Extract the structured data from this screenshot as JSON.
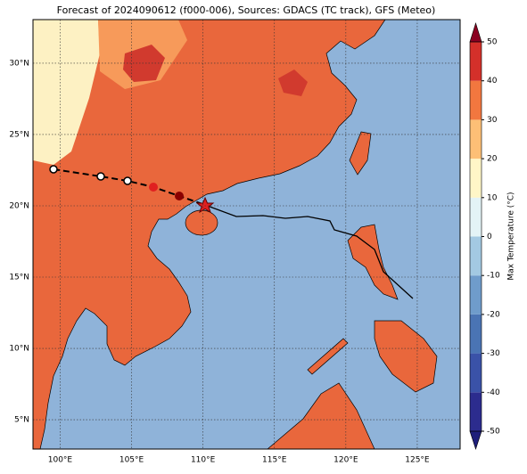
{
  "map": {
    "title": "Forecast of 2024090612 (f000-006), Sources: GDACS (TC track), GFS (Meteo)",
    "xlim": [
      98.1,
      128.0
    ],
    "ylim": [
      2.94,
      33.06
    ],
    "xticks": [
      {
        "value": 100,
        "label": "100°E"
      },
      {
        "value": 105,
        "label": "105°E"
      },
      {
        "value": 110,
        "label": "110°E"
      },
      {
        "value": 115,
        "label": "115°E"
      },
      {
        "value": 120,
        "label": "120°E"
      },
      {
        "value": 125,
        "label": "125°E"
      }
    ],
    "yticks": [
      {
        "value": 5,
        "label": "5°N"
      },
      {
        "value": 10,
        "label": "10°N"
      },
      {
        "value": 15,
        "label": "15°N"
      },
      {
        "value": 20,
        "label": "20°N"
      },
      {
        "value": 25,
        "label": "25°N"
      },
      {
        "value": 30,
        "label": "30°N"
      }
    ],
    "grid": true,
    "colorbar": {
      "label": "Max Temperature (°C)",
      "lim": [
        -50,
        50
      ],
      "ticks": [
        -50,
        -40,
        -30,
        -20,
        -10,
        0,
        10,
        20,
        30,
        40,
        50
      ],
      "colors": [
        "#2c2c8e",
        "#3a52a8",
        "#4a74b4",
        "#6f9ccb",
        "#a3c9e2",
        "#e3f3f6",
        "#fff6c7",
        "#fdbf76",
        "#f2773f",
        "#d4302a",
        "#a20026"
      ],
      "extend_colors": [
        "#1f1f7a",
        "#8b0021"
      ]
    }
  }
}
